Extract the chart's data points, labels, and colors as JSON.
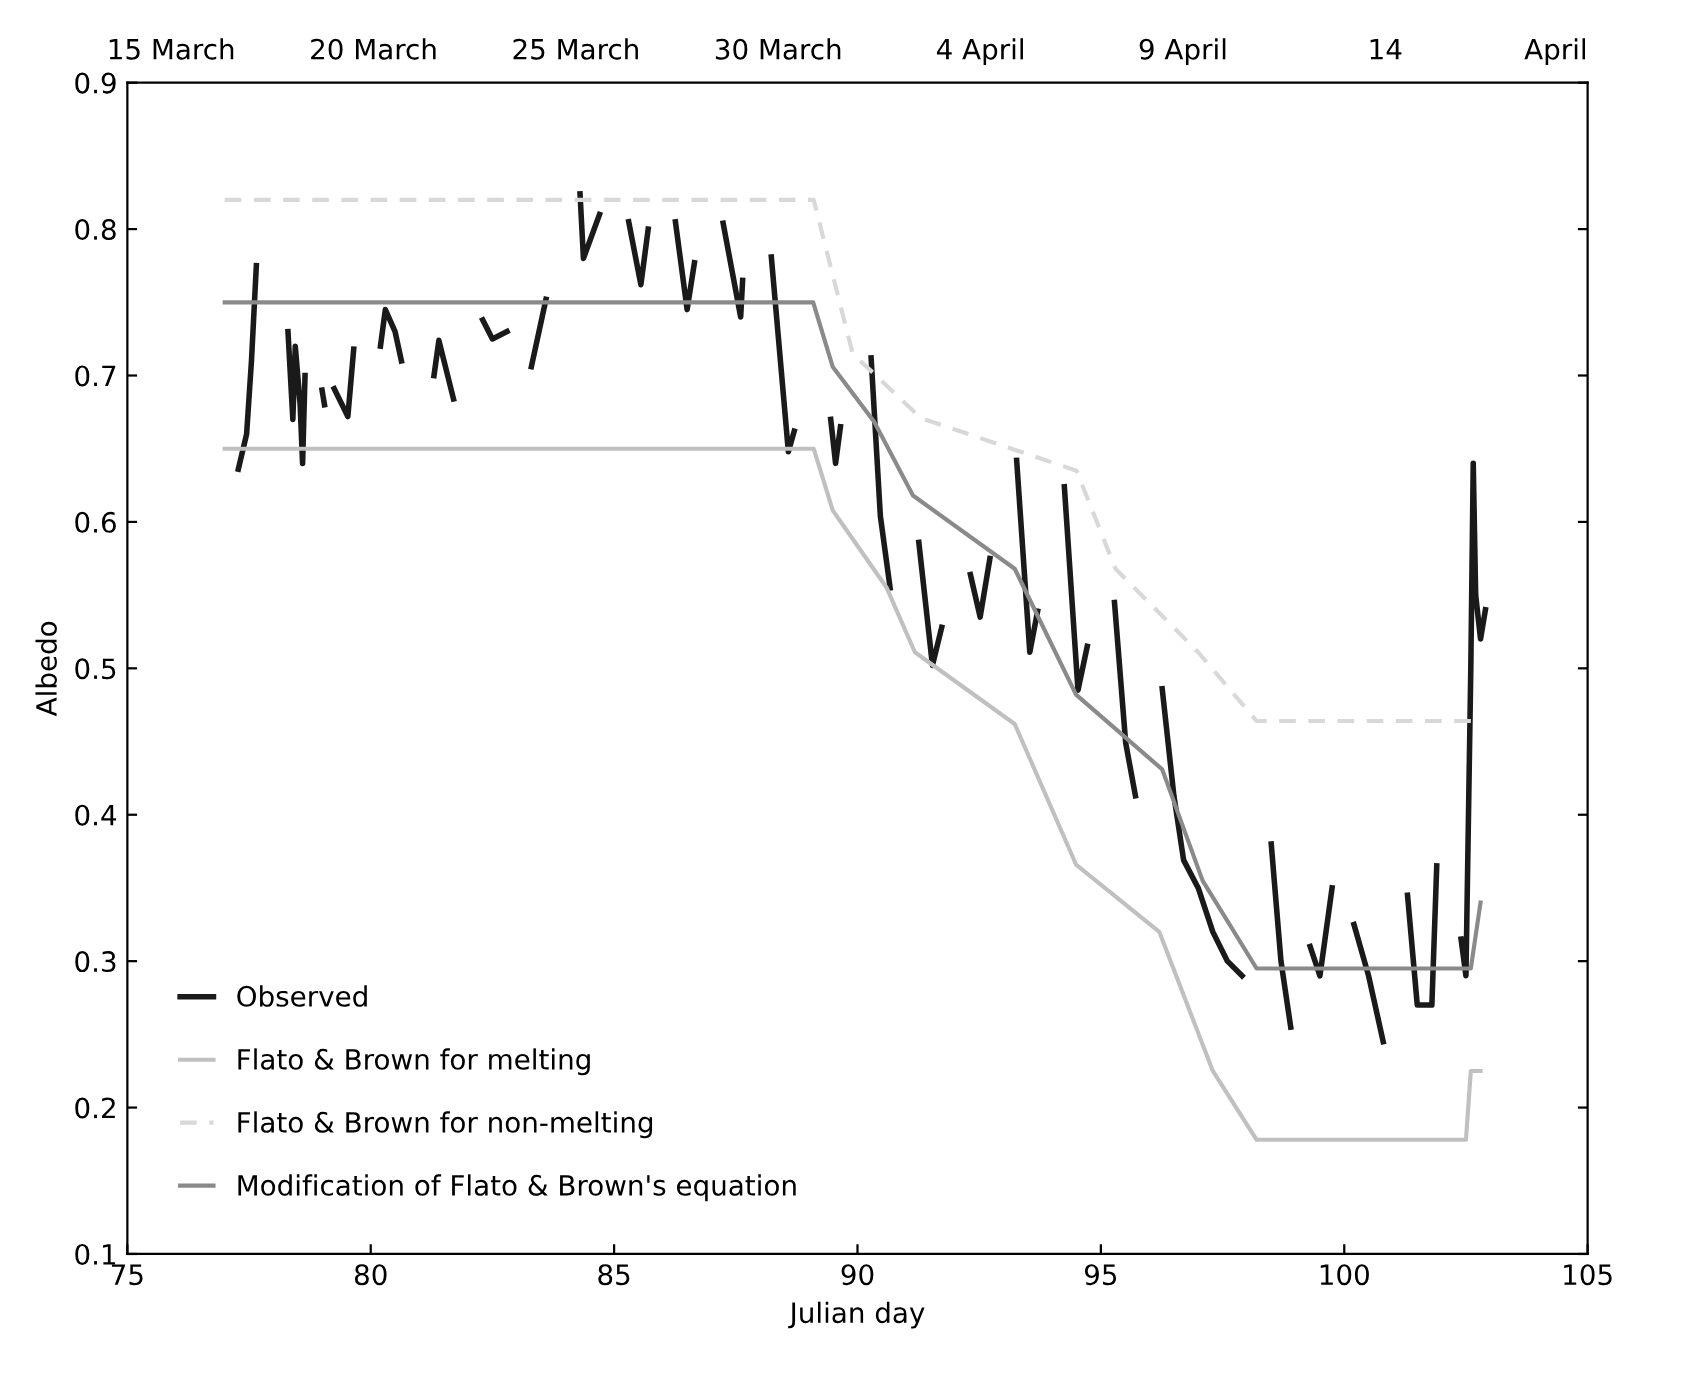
{
  "chart_data": {
    "type": "line",
    "xlabel": "Julian day",
    "ylabel": "Albedo",
    "xlim": [
      75,
      105
    ],
    "xticks": [
      75,
      80,
      85,
      90,
      95,
      100,
      105
    ],
    "ylim": [
      0.1,
      0.9
    ],
    "yticks": [
      0.1,
      0.2,
      0.3,
      0.4,
      0.5,
      0.6,
      0.7,
      0.8,
      0.9
    ],
    "annotations": [
      "15 March",
      "20 March",
      "25 March",
      "30 March",
      "4 April",
      "9 April",
      "14",
      "April"
    ],
    "legend": "bottom left",
    "grid": false,
    "marker": "none",
    "series": [
      {
        "name": "Observed",
        "color": "#1a1a1a",
        "line_style": "solid",
        "x": [
          77.28,
          77.45,
          77.55,
          77.65,
          77.7,
          78.3,
          78.4,
          78.45,
          78.55,
          78.6,
          78.65,
          78.7,
          79.0,
          79.05,
          79.1,
          79.25,
          79.53,
          79.65,
          79.7,
          80.2,
          80.3,
          80.5,
          80.63,
          80.7,
          81.3,
          81.4,
          81.7,
          81.8,
          82.3,
          82.5,
          82.8,
          82.9,
          83.3,
          83.6,
          83.7,
          84.3,
          84.37,
          84.7,
          84.8,
          85.3,
          85.55,
          85.7,
          85.8,
          86.26,
          86.5,
          86.65,
          86.7,
          87.24,
          87.6,
          87.64,
          87.7,
          88.23,
          88.58,
          88.7,
          88.8,
          89.45,
          89.55,
          89.65,
          89.7,
          90.28,
          90.47,
          90.67,
          90.7,
          91.26,
          91.54,
          91.73,
          91.8,
          92.32,
          92.52,
          92.72,
          92.8,
          93.27,
          93.54,
          93.7,
          93.8,
          94.25,
          94.53,
          94.72,
          94.8,
          95.28,
          95.51,
          95.71,
          95.8,
          96.26,
          96.5,
          96.7,
          97.0,
          97.3,
          97.6,
          97.9,
          98.0,
          98.5,
          98.7,
          98.9,
          99.0,
          99.3,
          99.5,
          99.75,
          99.8,
          100.2,
          100.5,
          100.8,
          100.9,
          101.3,
          101.5,
          101.8,
          101.9,
          102.0,
          102.4,
          102.5,
          102.6,
          102.65,
          102.7,
          102.8,
          102.9
        ],
        "values": [
          0.636,
          0.66,
          0.71,
          0.775,
          null,
          0.73,
          0.67,
          0.72,
          0.68,
          0.64,
          0.7,
          null,
          0.69,
          0.68,
          null,
          0.691,
          0.672,
          0.718,
          null,
          0.72,
          0.745,
          0.73,
          0.71,
          null,
          0.7,
          0.724,
          0.684,
          null,
          0.738,
          0.725,
          0.73,
          null,
          0.706,
          0.752,
          null,
          0.824,
          0.78,
          0.81,
          null,
          0.805,
          0.762,
          0.8,
          null,
          0.805,
          0.745,
          0.777,
          null,
          0.804,
          0.74,
          0.765,
          null,
          0.781,
          0.648,
          0.662,
          null,
          0.67,
          0.64,
          0.665,
          null,
          0.712,
          0.604,
          0.555,
          null,
          0.586,
          0.502,
          0.528,
          null,
          0.564,
          0.535,
          0.575,
          null,
          0.642,
          0.511,
          0.539,
          null,
          0.624,
          0.485,
          0.515,
          null,
          0.545,
          0.449,
          0.413,
          null,
          0.486,
          0.413,
          0.369,
          0.35,
          0.32,
          0.3,
          0.29,
          null,
          0.38,
          0.3,
          0.255,
          null,
          0.31,
          0.29,
          0.35,
          null,
          0.325,
          0.29,
          0.245,
          null,
          0.345,
          0.27,
          0.27,
          0.365,
          null,
          0.315,
          0.29,
          0.5,
          0.64,
          0.55,
          0.52,
          0.54
        ]
      },
      {
        "name": "Flato & Brown for melting",
        "color": "#c0c0c0",
        "line_style": "solid",
        "x": [
          77.0,
          89.1,
          89.49,
          90.6,
          91.18,
          93.23,
          94.49,
          96.2,
          97.3,
          98.2,
          102.5,
          102.6,
          102.8
        ],
        "values": [
          0.65,
          0.65,
          0.608,
          0.555,
          0.511,
          0.462,
          0.366,
          0.32,
          0.225,
          0.178,
          0.178,
          0.225,
          0.225
        ]
      },
      {
        "name": "Flato & Brown for non-melting",
        "color": "#d8d8d8",
        "line_style": "dashed",
        "x": [
          77.0,
          89.1,
          89.9,
          91.3,
          94.5,
          95.3,
          97.0,
          98.2,
          102.4,
          102.8
        ],
        "values": [
          0.82,
          0.82,
          0.715,
          0.671,
          0.635,
          0.568,
          0.511,
          0.464,
          0.464,
          0.464
        ]
      },
      {
        "name": "Modification of Flato & Brown's equation",
        "color": "#8a8a8a",
        "line_style": "solid",
        "x": [
          77.0,
          89.09,
          89.49,
          90.35,
          91.14,
          93.23,
          94.49,
          96.26,
          97.09,
          98.2,
          102.6,
          102.8
        ],
        "values": [
          0.75,
          0.75,
          0.706,
          0.668,
          0.618,
          0.568,
          0.482,
          0.431,
          0.355,
          0.295,
          0.295,
          0.34
        ]
      }
    ]
  }
}
